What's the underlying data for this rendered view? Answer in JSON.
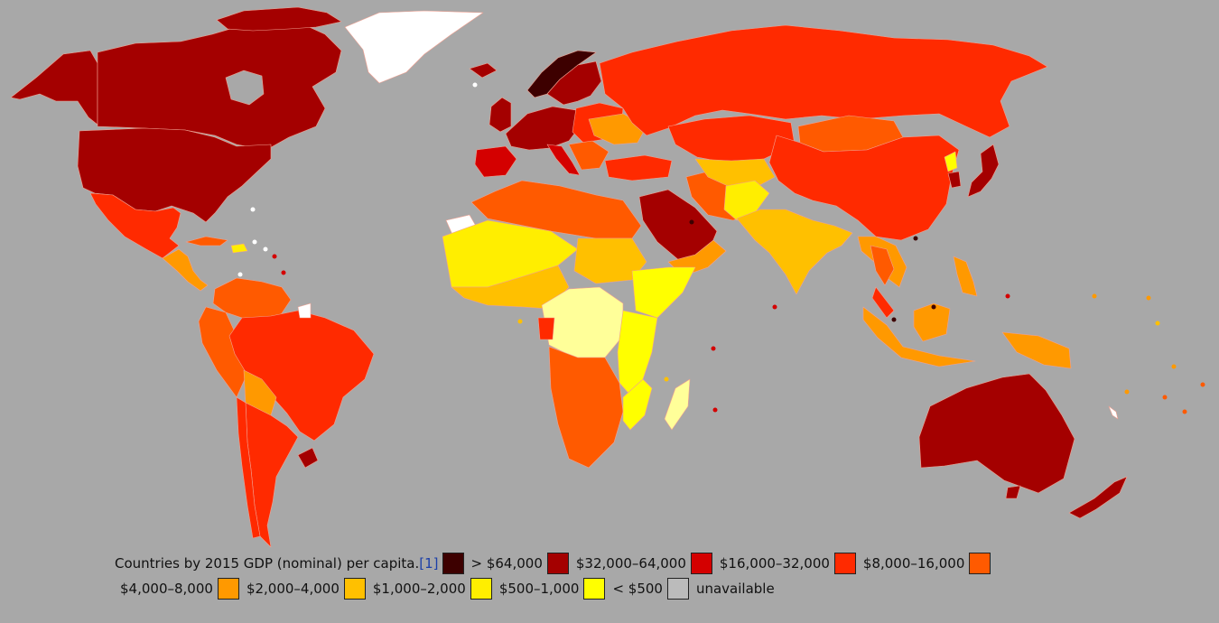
{
  "legend": {
    "caption": "Countries by 2015 GDP (nominal) per capita.",
    "ref": "[1]",
    "items": [
      {
        "label": "> $64,000",
        "color": "#3d0000"
      },
      {
        "label": "$32,000–64,000",
        "color": "#a40000"
      },
      {
        "label": "$16,000–32,000",
        "color": "#d40000"
      },
      {
        "label": "$8,000–16,000",
        "color": "#ff2a00"
      },
      {
        "label": "$4,000–8,000",
        "color": "#ff5a00"
      },
      {
        "label": "$2,000–4,000",
        "color": "#ff9900"
      },
      {
        "label": "$1,000–2,000",
        "color": "#ffc000"
      },
      {
        "label": "$500–1,000",
        "color": "#ffee00"
      },
      {
        "label": "< $500",
        "color": "#ffff00"
      },
      {
        "label": "unavailable",
        "color": "#bbbbbb"
      }
    ]
  },
  "map": {
    "ocean_color": "#a8a8a8",
    "no_data_color": "#ffffff",
    "border_color": "#f2a090"
  }
}
